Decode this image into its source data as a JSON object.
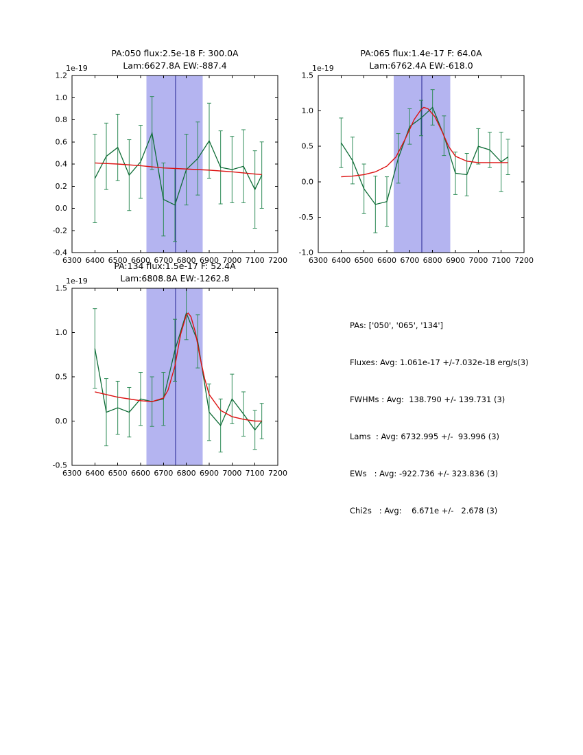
{
  "figure": {
    "background": "#ffffff"
  },
  "colors": {
    "band": "#b4b4f0",
    "vline": "#202090",
    "spectrum_line": "#0d6b35",
    "errorbar": "#2e8b57",
    "fit_line": "#dd1111",
    "axis": "#000000"
  },
  "summary": {
    "lines": [
      "PAs: ['050', '065', '134']",
      "Fluxes: Avg: 1.061e-17 +/-7.032e-18 erg/s(3)",
      "FWHMs : Avg:  138.790 +/- 139.731 (3)",
      "Lams  : Avg: 6732.995 +/-  93.996 (3)",
      "EWs   : Avg: -922.736 +/- 323.836 (3)",
      "Chi2s   : Avg:    6.671e +/-   2.678 (3)"
    ]
  },
  "chart_data": [
    {
      "type": "line",
      "title": "PA:050 flux:2.5e-18 F: 300.0A",
      "subtitle": "Lam:6627.8A EW:-887.4",
      "y_offset_label": "1e-19",
      "xlim": [
        6300,
        7200
      ],
      "ylim": [
        -0.4,
        1.2
      ],
      "xticks": [
        6300,
        6400,
        6500,
        6600,
        6700,
        6800,
        6900,
        7000,
        7100,
        7200
      ],
      "yticks": [
        -0.4,
        -0.2,
        0.0,
        0.2,
        0.4,
        0.6,
        0.8,
        1.0,
        1.2
      ],
      "band_x": [
        6625,
        6872
      ],
      "vline_x": 6753,
      "grid": false,
      "legend": "none",
      "series": [
        {
          "name": "spectrum",
          "color": "#0d6b35",
          "err_color": "#2e8b57",
          "x": [
            6400,
            6450,
            6500,
            6550,
            6600,
            6650,
            6700,
            6750,
            6800,
            6850,
            6900,
            6950,
            7000,
            7050,
            7100,
            7130
          ],
          "y": [
            0.27,
            0.47,
            0.55,
            0.3,
            0.42,
            0.68,
            0.08,
            0.03,
            0.35,
            0.45,
            0.61,
            0.37,
            0.35,
            0.38,
            0.17,
            0.3
          ],
          "yerr": [
            0.4,
            0.3,
            0.3,
            0.32,
            0.33,
            0.33,
            0.33,
            0.33,
            0.32,
            0.33,
            0.34,
            0.33,
            0.3,
            0.33,
            0.35,
            0.3
          ]
        },
        {
          "name": "fit",
          "color": "#dd1111",
          "x": [
            6400,
            6500,
            6600,
            6650,
            6700,
            6750,
            6800,
            6900,
            7000,
            7100,
            7130
          ],
          "y": [
            0.41,
            0.4,
            0.385,
            0.375,
            0.365,
            0.36,
            0.355,
            0.345,
            0.33,
            0.31,
            0.305
          ]
        }
      ]
    },
    {
      "type": "line",
      "title": "PA:065 flux:1.4e-17 F: 64.0A",
      "subtitle": "Lam:6762.4A EW:-618.0",
      "y_offset_label": "1e-19",
      "xlim": [
        6300,
        7200
      ],
      "ylim": [
        -1.0,
        1.5
      ],
      "xticks": [
        6300,
        6400,
        6500,
        6600,
        6700,
        6800,
        6900,
        7000,
        7100,
        7200
      ],
      "yticks": [
        -1.0,
        -0.5,
        0.0,
        0.5,
        1.0,
        1.5
      ],
      "band_x": [
        6630,
        6877
      ],
      "vline_x": 6753,
      "grid": false,
      "legend": "none",
      "series": [
        {
          "name": "spectrum",
          "color": "#0d6b35",
          "err_color": "#2e8b57",
          "x": [
            6400,
            6450,
            6500,
            6550,
            6600,
            6650,
            6700,
            6750,
            6800,
            6850,
            6900,
            6950,
            7000,
            7050,
            7100,
            7130
          ],
          "y": [
            0.55,
            0.3,
            -0.1,
            -0.32,
            -0.28,
            0.33,
            0.78,
            0.9,
            1.05,
            0.65,
            0.12,
            0.1,
            0.5,
            0.45,
            0.28,
            0.35
          ],
          "yerr": [
            0.35,
            0.33,
            0.35,
            0.4,
            0.35,
            0.35,
            0.25,
            0.25,
            0.25,
            0.28,
            0.3,
            0.3,
            0.25,
            0.25,
            0.42,
            0.25
          ]
        },
        {
          "name": "fit",
          "color": "#dd1111",
          "x": [
            6400,
            6450,
            6500,
            6550,
            6600,
            6640,
            6680,
            6720,
            6750,
            6762,
            6780,
            6810,
            6840,
            6870,
            6900,
            6950,
            7000,
            7050,
            7100,
            7130
          ],
          "y": [
            0.07,
            0.08,
            0.1,
            0.14,
            0.22,
            0.35,
            0.6,
            0.88,
            1.02,
            1.05,
            1.03,
            0.92,
            0.72,
            0.5,
            0.36,
            0.29,
            0.27,
            0.27,
            0.27,
            0.27
          ]
        }
      ]
    },
    {
      "type": "line",
      "title": "PA:134 flux:1.5e-17 F: 52.4A",
      "subtitle": "Lam:6808.8A EW:-1262.8",
      "y_offset_label": "1e-19",
      "xlim": [
        6300,
        7200
      ],
      "ylim": [
        -0.5,
        1.5
      ],
      "xticks": [
        6300,
        6400,
        6500,
        6600,
        6700,
        6800,
        6900,
        7000,
        7100,
        7200
      ],
      "yticks": [
        -0.5,
        0.0,
        0.5,
        1.0,
        1.5
      ],
      "band_x": [
        6625,
        6872
      ],
      "vline_x": 6753,
      "grid": false,
      "legend": "none",
      "series": [
        {
          "name": "spectrum",
          "color": "#0d6b35",
          "err_color": "#2e8b57",
          "x": [
            6400,
            6450,
            6500,
            6550,
            6600,
            6650,
            6700,
            6750,
            6800,
            6850,
            6900,
            6950,
            7000,
            7050,
            7100,
            7130
          ],
          "y": [
            0.82,
            0.1,
            0.15,
            0.1,
            0.25,
            0.22,
            0.25,
            0.8,
            1.22,
            0.9,
            0.1,
            -0.05,
            0.25,
            0.08,
            -0.1,
            0.0
          ],
          "yerr": [
            0.45,
            0.38,
            0.3,
            0.28,
            0.3,
            0.28,
            0.3,
            0.35,
            0.3,
            0.3,
            0.32,
            0.3,
            0.28,
            0.25,
            0.22,
            0.2
          ]
        },
        {
          "name": "fit",
          "color": "#dd1111",
          "x": [
            6400,
            6450,
            6500,
            6550,
            6600,
            6650,
            6700,
            6720,
            6750,
            6775,
            6800,
            6808,
            6820,
            6840,
            6860,
            6880,
            6900,
            6950,
            7000,
            7050,
            7100,
            7130
          ],
          "y": [
            0.33,
            0.3,
            0.27,
            0.25,
            0.23,
            0.22,
            0.26,
            0.35,
            0.62,
            0.98,
            1.2,
            1.22,
            1.18,
            1.0,
            0.72,
            0.48,
            0.3,
            0.12,
            0.05,
            0.02,
            0.0,
            0.0
          ]
        }
      ]
    }
  ]
}
